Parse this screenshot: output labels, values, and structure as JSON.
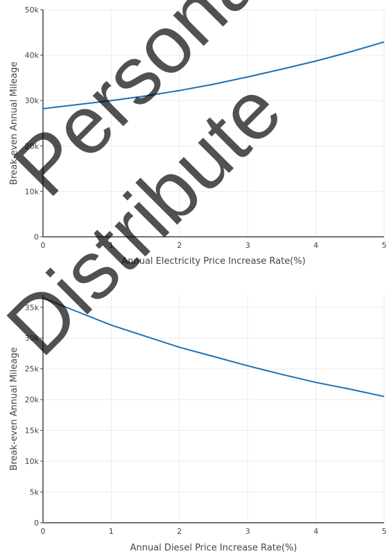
{
  "chart_data": [
    {
      "type": "line",
      "xlabel": "Annual Electricity Price Increase Rate(%)",
      "ylabel": "Break-even Annual Mileage",
      "xlim": [
        0,
        5
      ],
      "ylim": [
        0,
        50000
      ],
      "x_ticks": [
        "0",
        "1",
        "2",
        "3",
        "4",
        "5"
      ],
      "y_ticks": [
        "0",
        "10k",
        "20k",
        "30k",
        "40k",
        "50k"
      ],
      "grid": true,
      "color": "#1f6fb2",
      "series": [
        {
          "x": [
            0,
            0.5,
            1,
            1.5,
            2,
            2.5,
            3,
            3.5,
            4,
            4.5,
            5
          ],
          "values": [
            28200,
            29100,
            30000,
            31000,
            32200,
            33600,
            35200,
            36900,
            38700,
            40700,
            42900
          ]
        }
      ]
    },
    {
      "type": "line",
      "xlabel": "Annual Diesel Price Increase Rate(%)",
      "ylabel": "Break-even Annual Mileage",
      "xlim": [
        0,
        5
      ],
      "ylim": [
        0,
        37000
      ],
      "x_ticks": [
        "0",
        "1",
        "2",
        "3",
        "4",
        "5"
      ],
      "y_ticks": [
        "0",
        "5k",
        "10k",
        "15k",
        "20k",
        "25k",
        "30k",
        "35k"
      ],
      "grid": true,
      "color": "#1f6fb2",
      "series": [
        {
          "x": [
            0,
            0.5,
            1,
            1.5,
            2,
            2.5,
            3,
            3.5,
            4,
            4.5,
            5
          ],
          "values": [
            36500,
            34300,
            32100,
            30300,
            28500,
            27000,
            25500,
            24100,
            22800,
            21700,
            20500
          ]
        }
      ]
    }
  ],
  "watermark": {
    "lines": [
      "Personal",
      "Distribute"
    ]
  }
}
